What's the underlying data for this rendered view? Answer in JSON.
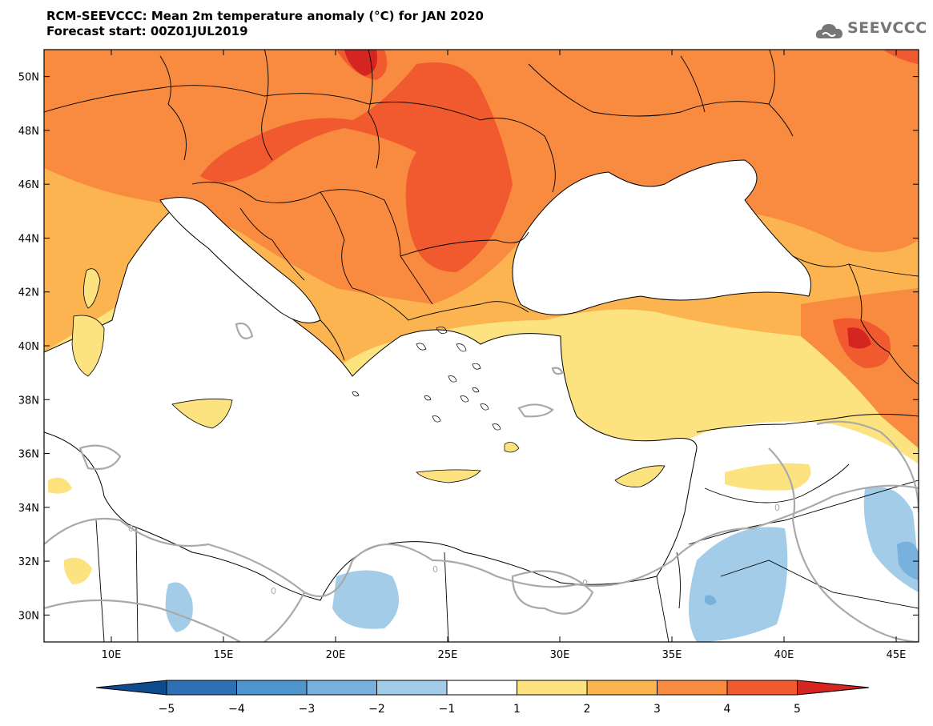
{
  "header": {
    "title": "RCM-SEEVCCC: Mean 2m temperature anomaly (°C) for JAN 2020",
    "subtitle": "Forecast start: 00Z01JUL2019"
  },
  "logo": {
    "text": "SEEVCCC",
    "icon": "cloud-icon"
  },
  "map": {
    "lon_range": [
      7,
      46
    ],
    "lat_range": [
      29,
      51
    ],
    "lat_ticks": [
      "30N",
      "32N",
      "34N",
      "36N",
      "38N",
      "40N",
      "42N",
      "44N",
      "46N",
      "48N",
      "50N"
    ],
    "lon_ticks": [
      "10E",
      "15E",
      "20E",
      "25E",
      "30E",
      "35E",
      "40E",
      "45E"
    ],
    "contour_label": "0"
  },
  "legend": {
    "labels": [
      "−5",
      "−4",
      "−3",
      "−2",
      "−1",
      "1",
      "2",
      "3",
      "4",
      "5"
    ],
    "colors": [
      "#0d4a8e",
      "#2f6fb5",
      "#4f95cd",
      "#78b1dd",
      "#a3cce8",
      "#ffffff",
      "#fde280",
      "#fbb450",
      "#f88b3f",
      "#f05a2e",
      "#d52520"
    ]
  }
}
